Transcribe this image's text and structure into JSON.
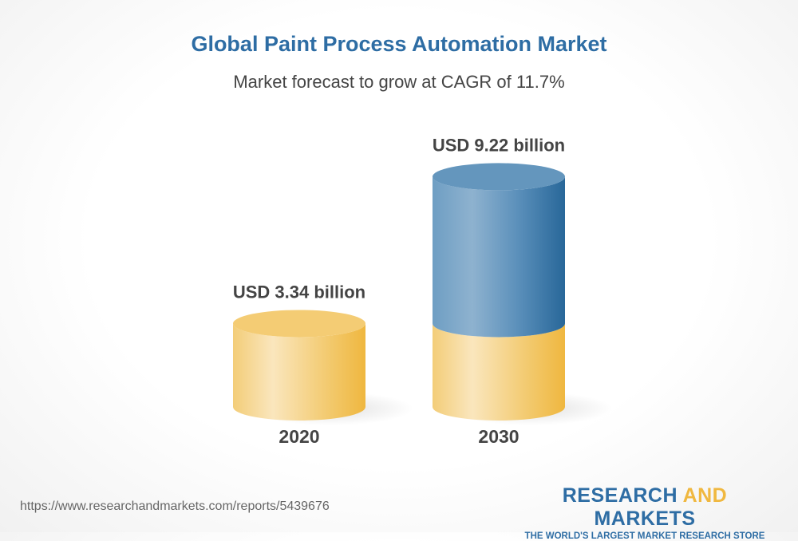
{
  "title": "Global Paint Process Automation Market",
  "subtitle": "Market forecast to grow at CAGR of 11.7%",
  "chart_data": {
    "type": "bar",
    "style": "3d-cylinder",
    "categories": [
      "2020",
      "2030"
    ],
    "values": [
      3.34,
      9.22
    ],
    "data_labels": [
      "USD 3.34 billion",
      "USD 9.22 billion"
    ],
    "unit": "USD billion",
    "colors": {
      "base": "#f2c45e",
      "growth": "#2e6da4"
    }
  },
  "footer": {
    "url": "https://www.researchandmarkets.com/reports/5439676",
    "logo_part1": "RESEARCH ",
    "logo_part2": "AND",
    "logo_part3": " MARKETS",
    "tagline": "THE WORLD'S LARGEST MARKET RESEARCH STORE"
  }
}
